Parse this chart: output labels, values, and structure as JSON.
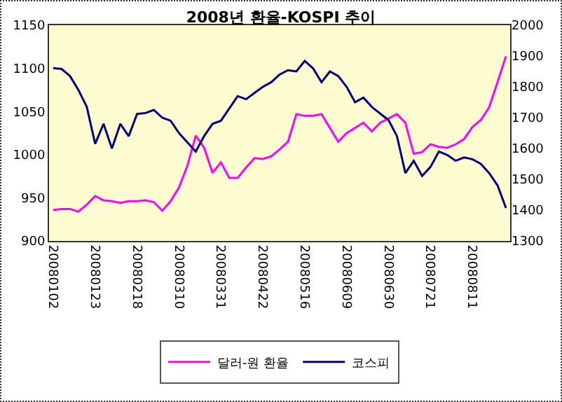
{
  "chart_data": {
    "type": "line",
    "title": "2008년 환율-KOSPI 추이",
    "categories": [
      "20080102",
      null,
      null,
      null,
      null,
      "20080123",
      null,
      null,
      null,
      null,
      "20080218",
      null,
      null,
      null,
      null,
      "20080310",
      null,
      null,
      null,
      null,
      "20080331",
      null,
      null,
      null,
      null,
      "20080422",
      null,
      null,
      null,
      null,
      "20080516",
      null,
      null,
      null,
      null,
      "20080609",
      null,
      null,
      null,
      null,
      "20080630",
      null,
      null,
      null,
      null,
      "20080721",
      null,
      null,
      null,
      null,
      "20080811",
      null,
      null,
      null,
      null
    ],
    "series": [
      {
        "name": "달러-원 환율",
        "color": "#ff00ff",
        "values": [
          936,
          937,
          937,
          934,
          942,
          952,
          947,
          946,
          944,
          946,
          946,
          947,
          945,
          935,
          946,
          962,
          987,
          1022,
          1008,
          979,
          991,
          973,
          973,
          985,
          996,
          995,
          998,
          1006,
          1015,
          1047,
          1045,
          1045,
          1047,
          1031,
          1015,
          1025,
          1031,
          1037,
          1027,
          1037,
          1042,
          1047,
          1037,
          1001,
          1003,
          1012,
          1009,
          1008,
          1012,
          1018,
          1032,
          1040,
          1055,
          1084,
          1114
        ]
      },
      {
        "name": "코스피",
        "color": "#000080",
        "axis": "y2",
        "values": [
          1861,
          1858,
          1835,
          1790,
          1735,
          1615,
          1680,
          1600,
          1680,
          1640,
          1712,
          1715,
          1725,
          1700,
          1690,
          1650,
          1620,
          1590,
          1640,
          1680,
          1690,
          1730,
          1770,
          1760,
          1780,
          1800,
          1815,
          1840,
          1854,
          1850,
          1884,
          1860,
          1815,
          1850,
          1835,
          1800,
          1750,
          1765,
          1735,
          1713,
          1692,
          1640,
          1520,
          1560,
          1511,
          1540,
          1590,
          1579,
          1560,
          1571,
          1565,
          1550,
          1520,
          1480,
          1407
        ]
      }
    ],
    "ylim": [
      900,
      1150
    ],
    "yticks": [
      900,
      950,
      1000,
      1050,
      1100,
      1150
    ],
    "y2lim": [
      1300,
      2000
    ],
    "y2ticks": [
      1300,
      1400,
      1500,
      1600,
      1700,
      1800,
      1900,
      2000
    ],
    "legend": "bottom",
    "marker": "none",
    "line_style": "solid"
  }
}
